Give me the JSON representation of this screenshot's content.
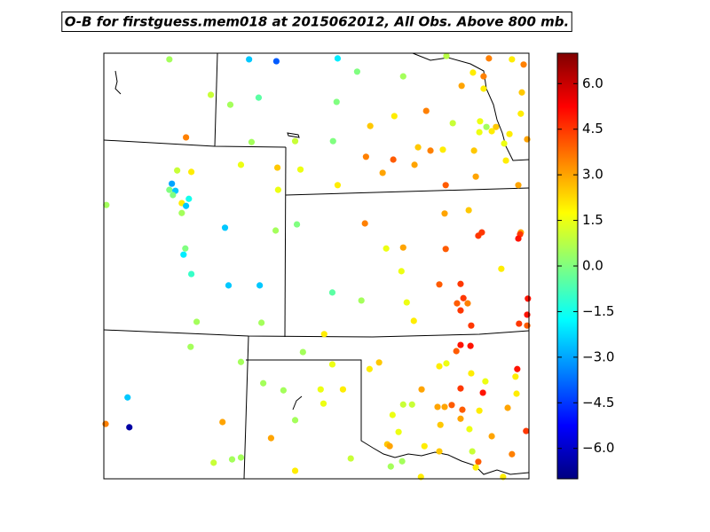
{
  "chart_data": {
    "type": "scatter",
    "title": "O-B for firstguess.mem018 at 2015062012, All Obs. Above 800 mb.",
    "cmap": "jet",
    "clim": [
      -7,
      7
    ],
    "xlim": [
      -107.2,
      -95.2
    ],
    "ylim": [
      34,
      43
    ],
    "cticks": [
      {
        "value": -6,
        "label": "−6.0"
      },
      {
        "value": -4.5,
        "label": "−4.5"
      },
      {
        "value": -3,
        "label": "−3.0"
      },
      {
        "value": -1.5,
        "label": "−1.5"
      },
      {
        "value": 0,
        "label": "0.0"
      },
      {
        "value": 1.5,
        "label": "1.5"
      },
      {
        "value": 3,
        "label": "3.0"
      },
      {
        "value": 4.5,
        "label": "4.5"
      },
      {
        "value": 6,
        "label": "6.0"
      }
    ],
    "x": [
      -105.35,
      -103.1,
      -102.33,
      -100.6,
      -100.05,
      -98.75,
      -96.33,
      -95.68,
      -95.35,
      -97.53,
      -104.18,
      -103.63,
      -102.83,
      -100.63,
      -97.1,
      -96.78,
      -96.48,
      -96.48,
      -95.4,
      -104.88,
      -103.03,
      -101.8,
      -100.73,
      -99.68,
      -99.0,
      -98.1,
      -97.35,
      -96.58,
      -96.4,
      -96.13,
      -96.25,
      -96.6,
      -95.75,
      -95.43,
      -95.25,
      -98.33,
      -97.98,
      -97.63,
      -96.75,
      -95.9,
      -99.8,
      -99.03,
      -98.43,
      -99.33,
      -95.85,
      -95.5,
      -96.7,
      -97.55,
      -103.33,
      -102.3,
      -101.65,
      -100.6,
      -105.13,
      -104.73,
      -105.28,
      -105.35,
      -105.18,
      -105.25,
      -104.8,
      -105.0,
      -104.88,
      -105.0,
      -107.13,
      -102.28,
      -99.83,
      -97.58,
      -96.9,
      -96.53,
      -96.63,
      -95.43,
      -95.45,
      -95.5,
      -103.78,
      -102.35,
      -101.75,
      -99.23,
      -98.75,
      -97.55,
      -104.9,
      -104.95,
      -104.73,
      -98.8,
      -95.98,
      -97.73,
      -97.13,
      -103.68,
      -102.8,
      -100.75,
      -99.93,
      -98.65,
      -97.05,
      -97.23,
      -96.93,
      -97.13,
      -95.23,
      -95.25,
      -95.48,
      -95.25,
      -96.83,
      -98.45,
      -104.58,
      -102.75,
      -100.98,
      -104.75,
      -97.13,
      -96.85,
      -97.25,
      -101.58,
      -103.33,
      -100.75,
      -99.43,
      -99.7,
      -97.73,
      -97.53,
      -95.53,
      -95.58,
      -96.83,
      -96.43,
      -102.7,
      -102.13,
      -101.08,
      -100.45,
      -98.23,
      -97.13,
      -96.5,
      -95.55,
      -106.53,
      -101.0,
      -98.75,
      -98.5,
      -97.78,
      -97.58,
      -97.38,
      -97.08,
      -96.6,
      -95.8,
      -99.05,
      -97.13,
      -97.7,
      -101.8,
      -103.85,
      -107.15,
      -106.48,
      -98.88,
      -96.88,
      -95.28,
      -102.48,
      -96.25,
      -99.2,
      -98.15,
      -99.13,
      -97.73,
      -95.68,
      -96.8,
      -104.1,
      -103.58,
      -103.33,
      -100.23,
      -98.78,
      -96.63,
      -99.1,
      -96.7,
      -101.8,
      -98.25,
      -95.93
    ],
    "y": [
      42.87,
      42.87,
      42.83,
      42.89,
      42.61,
      42.51,
      42.89,
      42.87,
      42.76,
      42.94,
      42.12,
      41.91,
      42.06,
      41.97,
      42.31,
      42.59,
      42.51,
      42.25,
      42.17,
      41.22,
      41.12,
      41.14,
      41.14,
      41.46,
      41.67,
      41.78,
      41.52,
      41.56,
      41.44,
      41.44,
      41.35,
      41.33,
      41.29,
      41.72,
      41.18,
      41.01,
      40.94,
      40.96,
      40.94,
      41.09,
      40.81,
      40.75,
      40.64,
      40.47,
      40.73,
      40.21,
      40.39,
      40.21,
      40.64,
      40.58,
      40.54,
      40.21,
      40.52,
      40.49,
      40.24,
      40.11,
      40.09,
      40.0,
      39.92,
      39.83,
      39.77,
      39.62,
      39.79,
      40.11,
      39.4,
      39.61,
      39.68,
      39.21,
      39.14,
      39.21,
      39.17,
      39.08,
      39.31,
      39.25,
      39.38,
      38.87,
      38.89,
      38.86,
      38.87,
      38.74,
      38.33,
      38.39,
      38.44,
      38.11,
      38.12,
      38.09,
      38.09,
      37.94,
      37.77,
      37.73,
      37.82,
      37.71,
      37.71,
      37.56,
      37.81,
      37.47,
      37.28,
      37.24,
      37.24,
      37.34,
      37.32,
      37.3,
      37.06,
      36.79,
      36.83,
      36.81,
      36.7,
      36.68,
      36.47,
      36.42,
      36.46,
      36.32,
      36.38,
      36.44,
      36.32,
      36.16,
      36.23,
      36.06,
      36.02,
      35.87,
      35.89,
      35.89,
      35.89,
      35.91,
      35.82,
      35.8,
      35.72,
      35.59,
      35.57,
      35.57,
      35.52,
      35.52,
      35.56,
      35.46,
      35.44,
      35.5,
      35.35,
      35.27,
      35.14,
      35.24,
      35.2,
      35.16,
      35.09,
      34.99,
      35.05,
      35.01,
      34.86,
      34.9,
      34.73,
      34.69,
      34.69,
      34.58,
      34.52,
      34.58,
      34.34,
      34.41,
      34.45,
      34.43,
      34.37,
      34.36,
      34.26,
      34.24,
      34.17,
      34.04,
      34.04
    ],
    "values": [
      0.5,
      -2.5,
      -4,
      -2,
      0,
      0.5,
      3.5,
      2,
      3.5,
      0.8,
      1,
      0.5,
      -0.5,
      0,
      3,
      2,
      3.5,
      2,
      2.5,
      3.5,
      0.5,
      1,
      0,
      2.5,
      2,
      3.5,
      1,
      1.5,
      0.5,
      2.5,
      2,
      1.5,
      2,
      2,
      3,
      2.5,
      3.5,
      2,
      2.5,
      1.5,
      3.5,
      4,
      3,
      3,
      2,
      3,
      3,
      4,
      1.5,
      2.5,
      1.5,
      2,
      1,
      2,
      -3,
      0,
      -2.5,
      0,
      -1.5,
      2,
      -2.5,
      0.5,
      0.5,
      1.5,
      3.5,
      3,
      2.5,
      4.5,
      4.5,
      3,
      4.5,
      5,
      -2.5,
      0.5,
      0,
      1.5,
      3,
      4,
      0,
      -2,
      -1,
      1.5,
      2,
      4,
      4.5,
      -2.5,
      -2.5,
      -0.5,
      0.5,
      1.5,
      4.5,
      4,
      3.5,
      4.5,
      5,
      5,
      4.5,
      4,
      4.5,
      2,
      0.5,
      0.5,
      2,
      0.5,
      5,
      5,
      4,
      0.5,
      0.5,
      1.5,
      2.5,
      2,
      2,
      1.5,
      5,
      2,
      2,
      1.5,
      0.5,
      0.5,
      1.5,
      2,
      3,
      4.5,
      5,
      2,
      -2.5,
      1.5,
      1,
      1,
      3,
      3,
      4,
      4,
      2,
      3,
      1.5,
      3,
      2.5,
      0.5,
      3,
      3.5,
      -6.5,
      1.5,
      1.5,
      4.5,
      3,
      3,
      2.5,
      2,
      3,
      2.5,
      3.5,
      1,
      1,
      0.5,
      0.5,
      1,
      0.5,
      4,
      0.5,
      2,
      2,
      2,
      2
    ]
  }
}
